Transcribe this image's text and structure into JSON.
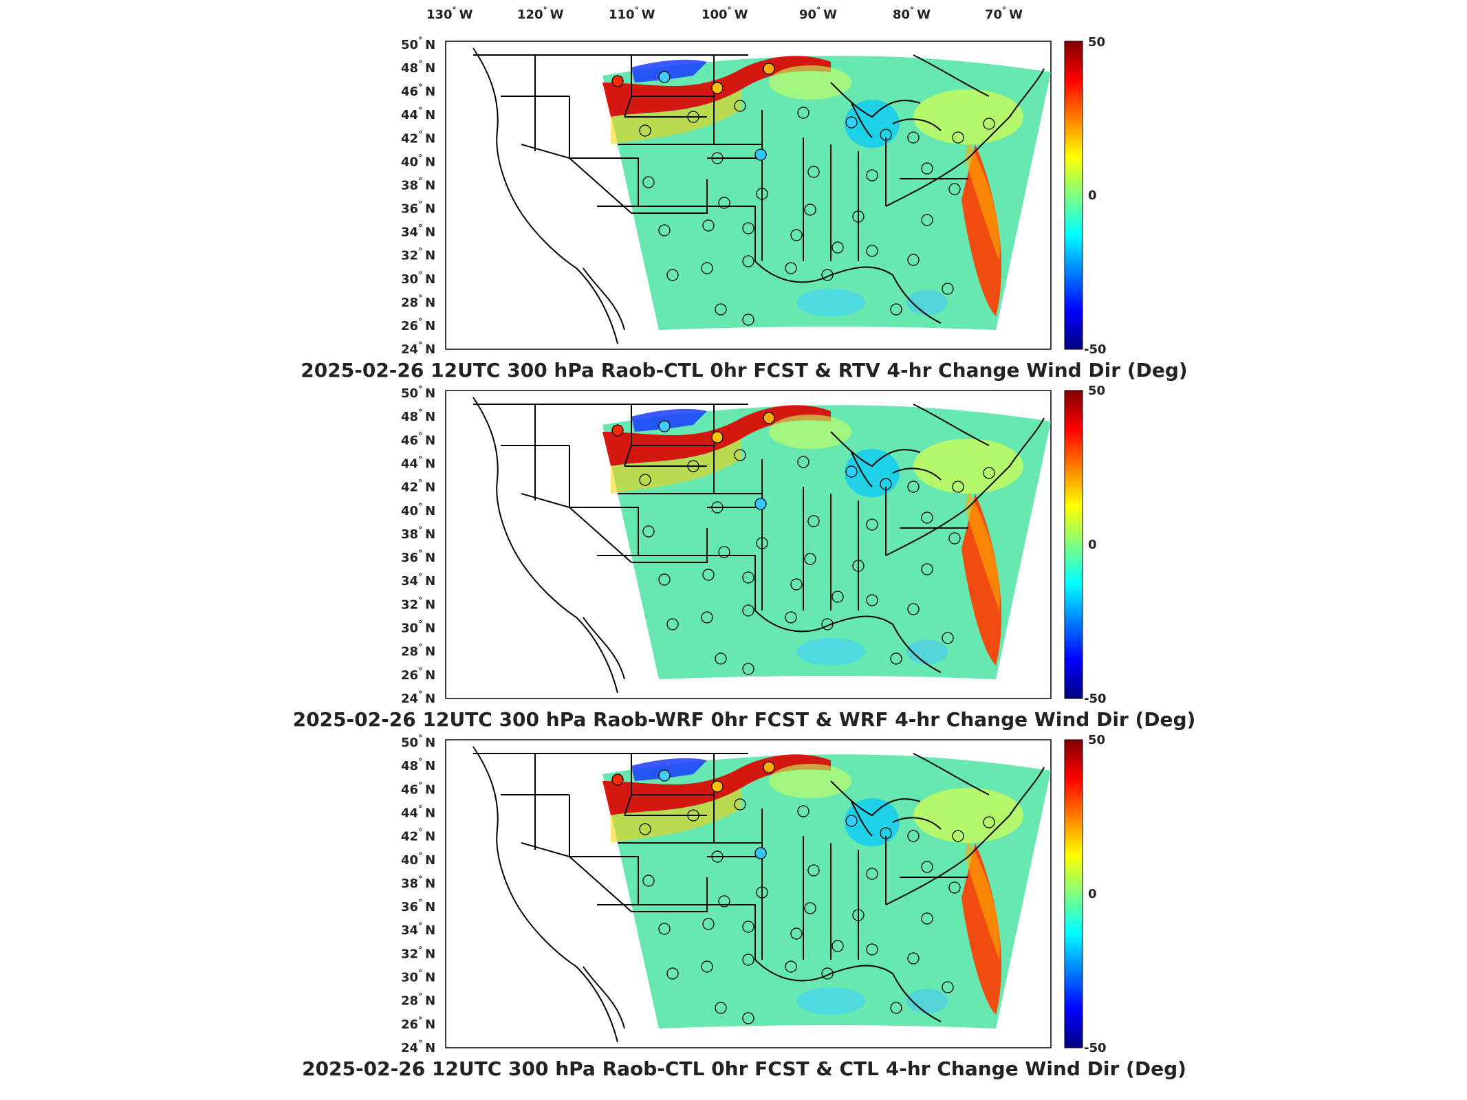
{
  "lon_labels": [
    "130",
    "120",
    "110",
    "100",
    "90",
    "80",
    "70"
  ],
  "lon_suffix": "W",
  "lat_labels": [
    "50",
    "48",
    "46",
    "44",
    "42",
    "40",
    "38",
    "36",
    "34",
    "32",
    "30",
    "28",
    "26",
    "24"
  ],
  "lat_suffix": "N",
  "degree_symbol": "°",
  "colorbar": {
    "max_label": "50",
    "mid_label": "0",
    "min_label": "-50"
  },
  "panels": [
    {
      "title": "2025-02-26 12UTC 300 hPa Raob-CTL 0hr FCST & RTV 4-hr Change Wind Dir (Deg)"
    },
    {
      "title": "2025-02-26 12UTC 300 hPa Raob-WRF 0hr FCST & WRF 4-hr Change Wind Dir (Deg)"
    },
    {
      "title": "2025-02-26 12UTC 300 hPa Raob-CTL 0hr FCST & CTL 4-hr Change Wind Dir (Deg)"
    }
  ],
  "colors": {
    "jet_dark_red": "#800000",
    "jet_red": "#ff0000",
    "jet_yellow": "#ffff00",
    "jet_cyan": "#00ffff",
    "jet_blue": "#0000ff",
    "jet_dark_blue": "#000080",
    "field_green": "#66e8a0"
  }
}
